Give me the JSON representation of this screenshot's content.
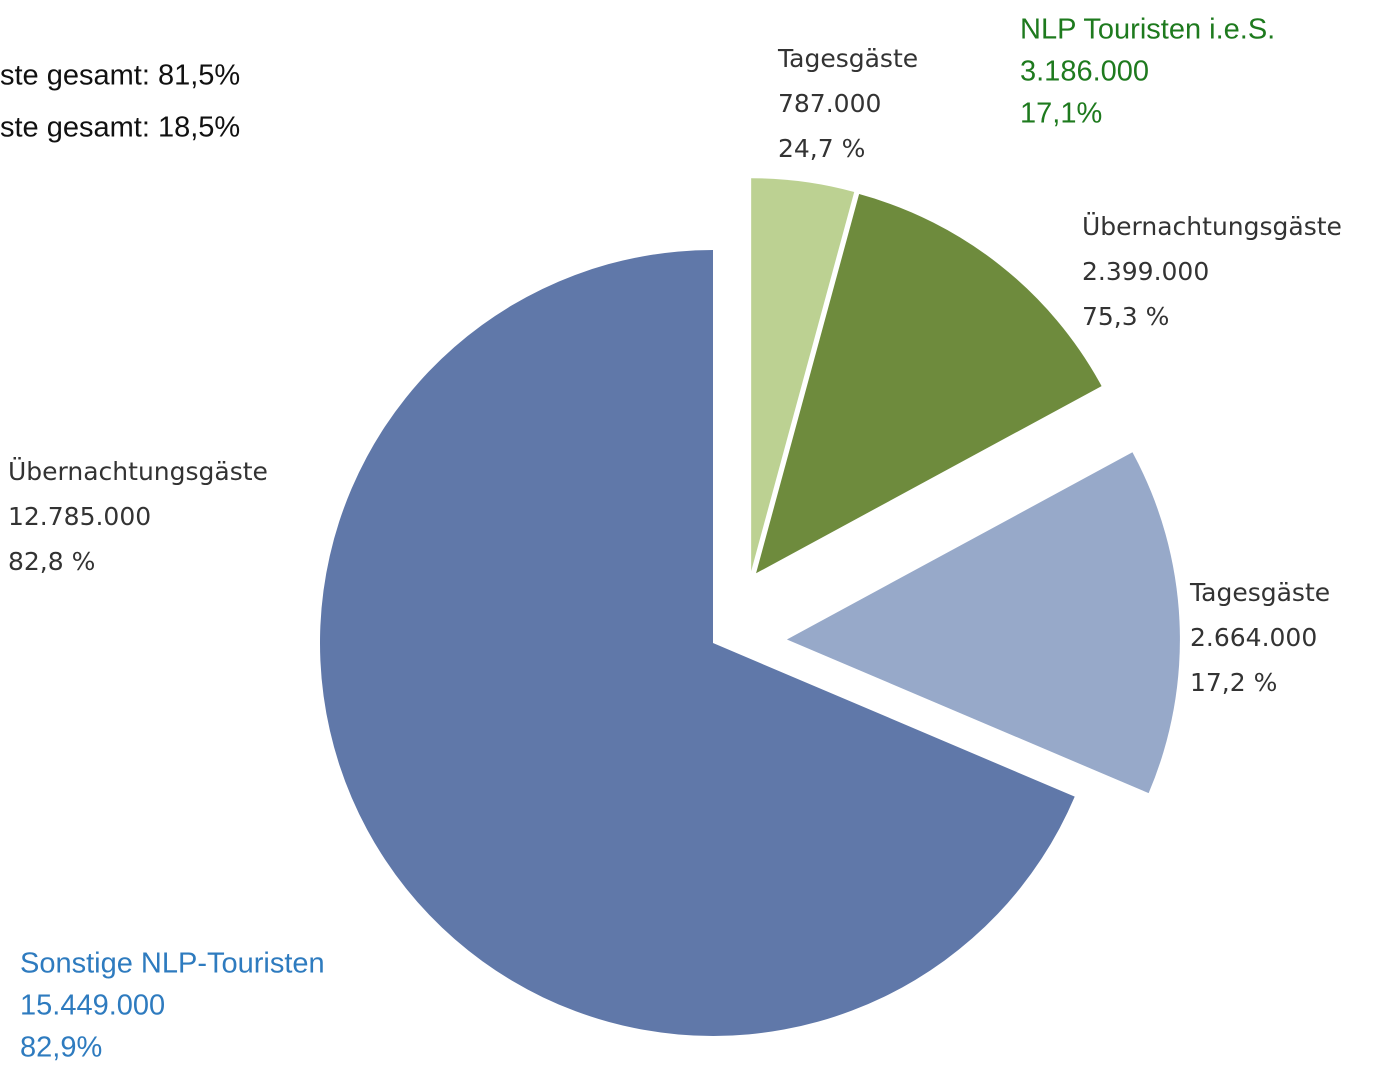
{
  "chart_data": {
    "type": "pie",
    "categories": [
      "Tagesgäste",
      "Übernachtungsgäste",
      "Tagesgäste",
      "Übernachtungsgäste"
    ],
    "values": [
      787000,
      2399000,
      2664000,
      12785000
    ],
    "value_labels": [
      "787.000",
      "2.399.000",
      "2.664.000",
      "12.785.000"
    ],
    "percent_labels": [
      "24,7 %",
      "75,3 %",
      "17,2 %",
      "82,8 %"
    ],
    "colors": [
      "#bcd192",
      "#6e8b3d",
      "#97a9c9",
      "#6078a9"
    ],
    "groups": [
      {
        "name": "NLP Touristen i.e.S.",
        "value": 3186000,
        "value_label": "3.186.000",
        "percent_label": "17,1%",
        "color": "#1e7a1e"
      },
      {
        "name": "Sonstige NLP-Touristen",
        "value": 15449000,
        "value_label": "15.449.000",
        "percent_label": "82,9%",
        "color": "#2e7bbf"
      }
    ],
    "notes": [
      "ste gesamt: 81,5%",
      "ste gesamt: 18,5%"
    ]
  }
}
